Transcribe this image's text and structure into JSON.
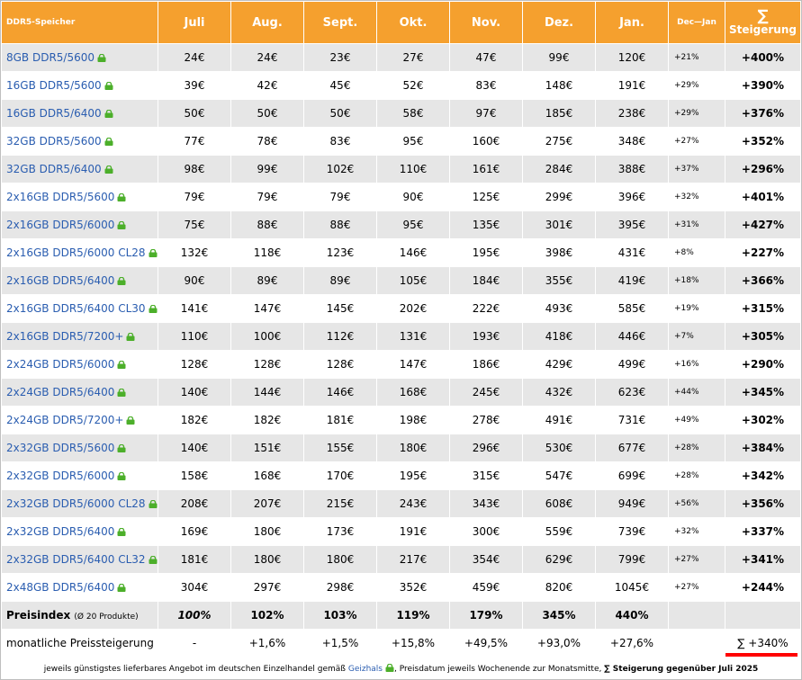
{
  "colors": {
    "header": "#f5a02e",
    "link": "#2a5db0",
    "lock": "#4caf2a",
    "stripe": "#e6e6e6",
    "marker": "#ff0000"
  },
  "icons": {
    "product_lock": "lock-icon"
  },
  "chart_data": {
    "type": "table",
    "columns": {
      "name": "DDR5-Speicher",
      "months": [
        "Juli",
        "Aug.",
        "Sept.",
        "Okt.",
        "Nov.",
        "Dez.",
        "Jan."
      ],
      "dec_jan": "Dec—Jan",
      "total_symbol": "∑",
      "total": "Steigerung"
    },
    "rows": [
      {
        "name": "8GB DDR5/5600",
        "prices": [
          "24€",
          "24€",
          "23€",
          "27€",
          "47€",
          "99€",
          "120€"
        ],
        "dec_jan": "+21%",
        "total": "+400%"
      },
      {
        "name": "16GB DDR5/5600",
        "prices": [
          "39€",
          "42€",
          "45€",
          "52€",
          "83€",
          "148€",
          "191€"
        ],
        "dec_jan": "+29%",
        "total": "+390%"
      },
      {
        "name": "16GB DDR5/6400",
        "prices": [
          "50€",
          "50€",
          "50€",
          "58€",
          "97€",
          "185€",
          "238€"
        ],
        "dec_jan": "+29%",
        "total": "+376%"
      },
      {
        "name": "32GB DDR5/5600",
        "prices": [
          "77€",
          "78€",
          "83€",
          "95€",
          "160€",
          "275€",
          "348€"
        ],
        "dec_jan": "+27%",
        "total": "+352%"
      },
      {
        "name": "32GB DDR5/6400",
        "prices": [
          "98€",
          "99€",
          "102€",
          "110€",
          "161€",
          "284€",
          "388€"
        ],
        "dec_jan": "+37%",
        "total": "+296%"
      },
      {
        "name": "2x16GB DDR5/5600",
        "prices": [
          "79€",
          "79€",
          "79€",
          "90€",
          "125€",
          "299€",
          "396€"
        ],
        "dec_jan": "+32%",
        "total": "+401%"
      },
      {
        "name": "2x16GB DDR5/6000",
        "prices": [
          "75€",
          "88€",
          "88€",
          "95€",
          "135€",
          "301€",
          "395€"
        ],
        "dec_jan": "+31%",
        "total": "+427%"
      },
      {
        "name": "2x16GB DDR5/6000 CL28",
        "prices": [
          "132€",
          "118€",
          "123€",
          "146€",
          "195€",
          "398€",
          "431€"
        ],
        "dec_jan": "+8%",
        "total": "+227%"
      },
      {
        "name": "2x16GB DDR5/6400",
        "prices": [
          "90€",
          "89€",
          "89€",
          "105€",
          "184€",
          "355€",
          "419€"
        ],
        "dec_jan": "+18%",
        "total": "+366%"
      },
      {
        "name": "2x16GB DDR5/6400 CL30",
        "prices": [
          "141€",
          "147€",
          "145€",
          "202€",
          "222€",
          "493€",
          "585€"
        ],
        "dec_jan": "+19%",
        "total": "+315%"
      },
      {
        "name": "2x16GB DDR5/7200+",
        "prices": [
          "110€",
          "100€",
          "112€",
          "131€",
          "193€",
          "418€",
          "446€"
        ],
        "dec_jan": "+7%",
        "total": "+305%"
      },
      {
        "name": "2x24GB DDR5/6000",
        "prices": [
          "128€",
          "128€",
          "128€",
          "147€",
          "186€",
          "429€",
          "499€"
        ],
        "dec_jan": "+16%",
        "total": "+290%"
      },
      {
        "name": "2x24GB DDR5/6400",
        "prices": [
          "140€",
          "144€",
          "146€",
          "168€",
          "245€",
          "432€",
          "623€"
        ],
        "dec_jan": "+44%",
        "total": "+345%"
      },
      {
        "name": "2x24GB DDR5/7200+",
        "prices": [
          "182€",
          "182€",
          "181€",
          "198€",
          "278€",
          "491€",
          "731€"
        ],
        "dec_jan": "+49%",
        "total": "+302%"
      },
      {
        "name": "2x32GB DDR5/5600",
        "prices": [
          "140€",
          "151€",
          "155€",
          "180€",
          "296€",
          "530€",
          "677€"
        ],
        "dec_jan": "+28%",
        "total": "+384%"
      },
      {
        "name": "2x32GB DDR5/6000",
        "prices": [
          "158€",
          "168€",
          "170€",
          "195€",
          "315€",
          "547€",
          "699€"
        ],
        "dec_jan": "+28%",
        "total": "+342%"
      },
      {
        "name": "2x32GB DDR5/6000 CL28",
        "prices": [
          "208€",
          "207€",
          "215€",
          "243€",
          "343€",
          "608€",
          "949€"
        ],
        "dec_jan": "+56%",
        "total": "+356%"
      },
      {
        "name": "2x32GB DDR5/6400",
        "prices": [
          "169€",
          "180€",
          "173€",
          "191€",
          "300€",
          "559€",
          "739€"
        ],
        "dec_jan": "+32%",
        "total": "+337%"
      },
      {
        "name": "2x32GB DDR5/6400 CL32",
        "prices": [
          "181€",
          "180€",
          "180€",
          "217€",
          "354€",
          "629€",
          "799€"
        ],
        "dec_jan": "+27%",
        "total": "+341%"
      },
      {
        "name": "2x48GB DDR5/6400",
        "prices": [
          "304€",
          "297€",
          "298€",
          "352€",
          "459€",
          "820€",
          "1045€"
        ],
        "dec_jan": "+27%",
        "total": "+244%"
      }
    ],
    "index_row": {
      "label": "Preisindex",
      "sublabel": "(Ø 20 Produkte)",
      "values": [
        "100%",
        "102%",
        "103%",
        "119%",
        "179%",
        "345%",
        "440%"
      ]
    },
    "monthly_row": {
      "label": "monatliche Preissteigerung",
      "values": [
        "-",
        "+1,6%",
        "+1,5%",
        "+15,8%",
        "+49,5%",
        "+93,0%",
        "+27,6%"
      ],
      "total": "∑ +340%"
    }
  },
  "footer": {
    "text_before": "jeweils günstigstes lieferbares Angebot im deutschen Einzelhandel gemäß",
    "source": "Geizhals",
    "text_after": ", Preisdatum jeweils Wochenende zur Monatsmitte,",
    "bold": "∑ Steigerung gegenüber Juli 2025"
  }
}
